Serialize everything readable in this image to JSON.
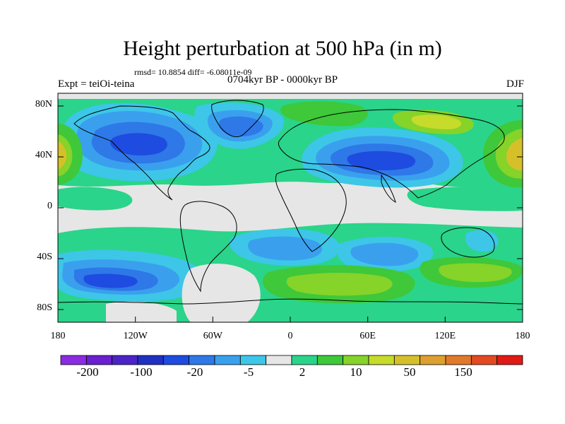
{
  "title": "Height perturbation at 500 hPa (in m)",
  "stats": "rmsd= 10.8854 diff= -6.08011e-09",
  "experiment": "Expt = teiOi-teina",
  "period": "0704kyr BP - 0000kyr BP",
  "season": "DJF",
  "axes": {
    "y_ticks": [
      "80N",
      "40N",
      "0",
      "40S",
      "80S"
    ],
    "x_ticks": [
      "180",
      "120W",
      "60W",
      "0",
      "60E",
      "120E",
      "180"
    ]
  },
  "colorbar": {
    "labels": [
      "-200",
      "-100",
      "-20",
      "-5",
      "2",
      "10",
      "50",
      "150"
    ],
    "colors": [
      "#8a2be2",
      "#6a1fd0",
      "#4b24c8",
      "#2030c0",
      "#1e4be0",
      "#2e78e8",
      "#3aa0ee",
      "#3dc6e8",
      "#e6e6e6",
      "#2ad48a",
      "#3ec83a",
      "#86d32a",
      "#c6db2a",
      "#d6c02a",
      "#dda030",
      "#e07a2a",
      "#e24a22",
      "#e01a14"
    ]
  },
  "map_colors": {
    "ocean_neutral": "#e6e6e6",
    "neg_light": "#3dc6e8",
    "neg_mid": "#3aa0ee",
    "neg_strong": "#2e78e8",
    "neg_core": "#1e4be0",
    "pos_light": "#2ad48a",
    "pos_mid": "#3ec83a",
    "pos_strong": "#86d32a",
    "pos_core": "#c6db2a",
    "pos_max": "#d6c02a",
    "pos_hot": "#dda030"
  }
}
